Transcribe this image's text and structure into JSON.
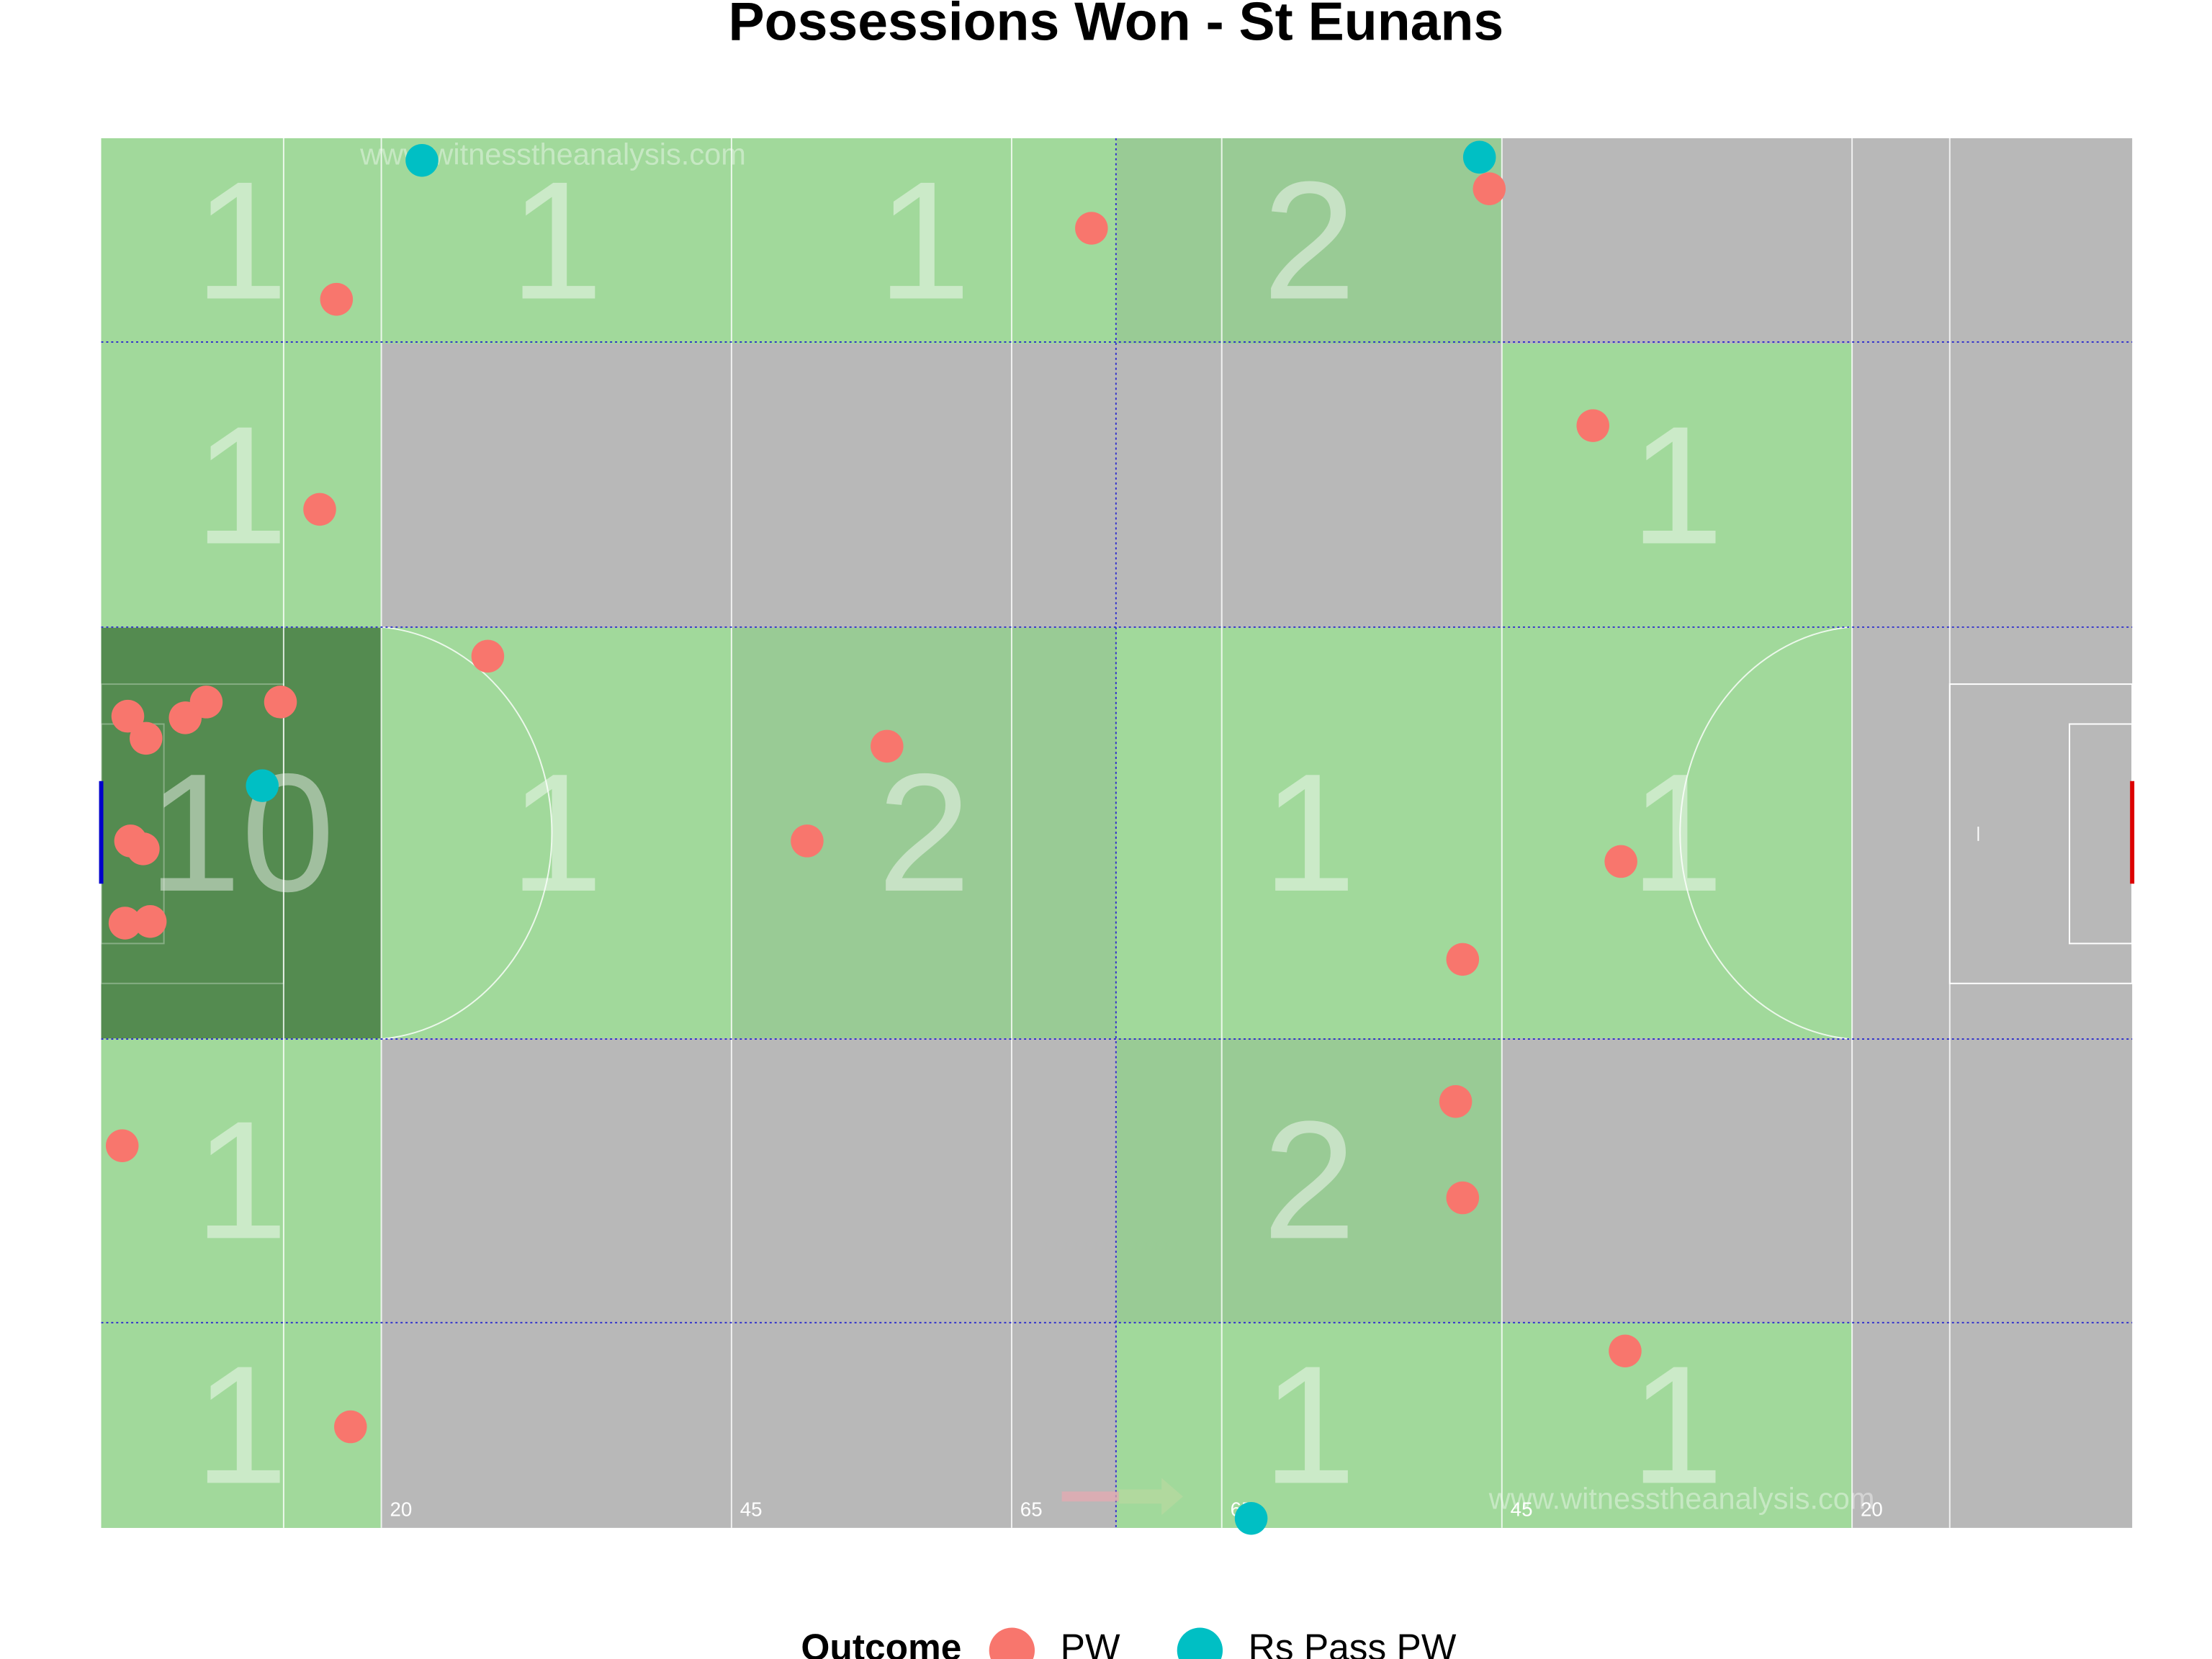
{
  "chart_data": {
    "type": "scatter",
    "title": "Possessions Won - St Eunans",
    "legend_title": "Outcome",
    "watermarks": [
      "www.witnesstheanalysis.com",
      "www.witnesstheanalysis.com"
    ],
    "xlim": [
      0,
      145
    ],
    "ylim": [
      0,
      88
    ],
    "xticks": [
      20,
      45,
      65,
      {
        "value": 80,
        "label": "65"
      },
      {
        "value": 100,
        "label": "45"
      },
      {
        "value": 125,
        "label": "20"
      }
    ],
    "zones": [
      {
        "x": [
          0,
          20
        ],
        "y": [
          75,
          88
        ],
        "count": 1,
        "color": "#a1d99b"
      },
      {
        "x": [
          20,
          45
        ],
        "y": [
          75,
          88
        ],
        "count": 1,
        "color": "#a1d99b"
      },
      {
        "x": [
          45,
          72.5
        ],
        "y": [
          75,
          88
        ],
        "count": 1,
        "color": "#a1d99b"
      },
      {
        "x": [
          72.5,
          100
        ],
        "y": [
          75,
          88
        ],
        "count": 2,
        "color": "#99cb95"
      },
      {
        "x": [
          0,
          20
        ],
        "y": [
          57,
          75
        ],
        "count": 1,
        "color": "#a1d99b"
      },
      {
        "x": [
          100,
          125
        ],
        "y": [
          57,
          75
        ],
        "count": 1,
        "color": "#a1d99b"
      },
      {
        "x": [
          0,
          20
        ],
        "y": [
          31,
          57
        ],
        "count": 10,
        "color": "#548b50"
      },
      {
        "x": [
          20,
          45
        ],
        "y": [
          31,
          57
        ],
        "count": 1,
        "color": "#a1d99b"
      },
      {
        "x": [
          45,
          72.5
        ],
        "y": [
          31,
          57
        ],
        "count": 2,
        "color": "#99cb95"
      },
      {
        "x": [
          72.5,
          100
        ],
        "y": [
          31,
          57
        ],
        "count": 1,
        "color": "#a1d99b"
      },
      {
        "x": [
          100,
          125
        ],
        "y": [
          31,
          57
        ],
        "count": 1,
        "color": "#a1d99b"
      },
      {
        "x": [
          0,
          20
        ],
        "y": [
          13,
          31
        ],
        "count": 1,
        "color": "#a1d99b"
      },
      {
        "x": [
          72.5,
          100
        ],
        "y": [
          13,
          31
        ],
        "count": 2,
        "color": "#99cb95"
      },
      {
        "x": [
          0,
          20
        ],
        "y": [
          0,
          13
        ],
        "count": 1,
        "color": "#a1d99b"
      },
      {
        "x": [
          72.5,
          100
        ],
        "y": [
          0,
          13
        ],
        "count": 1,
        "color": "#a1d99b"
      },
      {
        "x": [
          100,
          125
        ],
        "y": [
          0,
          13
        ],
        "count": 1,
        "color": "#a1d99b"
      }
    ],
    "series": [
      {
        "name": "PW",
        "color": "#f8766d",
        "x": [
          16.8,
          15.6,
          27.6,
          1.9,
          3.2,
          6.0,
          7.5,
          12.8,
          2.1,
          3.0,
          1.7,
          3.5,
          1.5,
          17.8,
          56.1,
          50.4,
          70.7,
          99.1,
          106.5,
          108.5,
          97.2,
          96.7,
          97.2,
          108.8
        ],
        "y": [
          77.8,
          64.5,
          55.2,
          51.4,
          50.0,
          51.3,
          52.3,
          52.3,
          43.5,
          43.0,
          38.3,
          38.4,
          24.2,
          6.4,
          49.5,
          43.5,
          82.3,
          84.8,
          69.8,
          42.2,
          36.0,
          27.0,
          20.9,
          11.2
        ]
      },
      {
        "name": "Rs Pass PW",
        "color": "#00bfc4",
        "x": [
          22.9,
          98.4,
          11.5,
          82.1
        ],
        "y": [
          86.6,
          86.8,
          47.0,
          0.6
        ]
      }
    ]
  }
}
